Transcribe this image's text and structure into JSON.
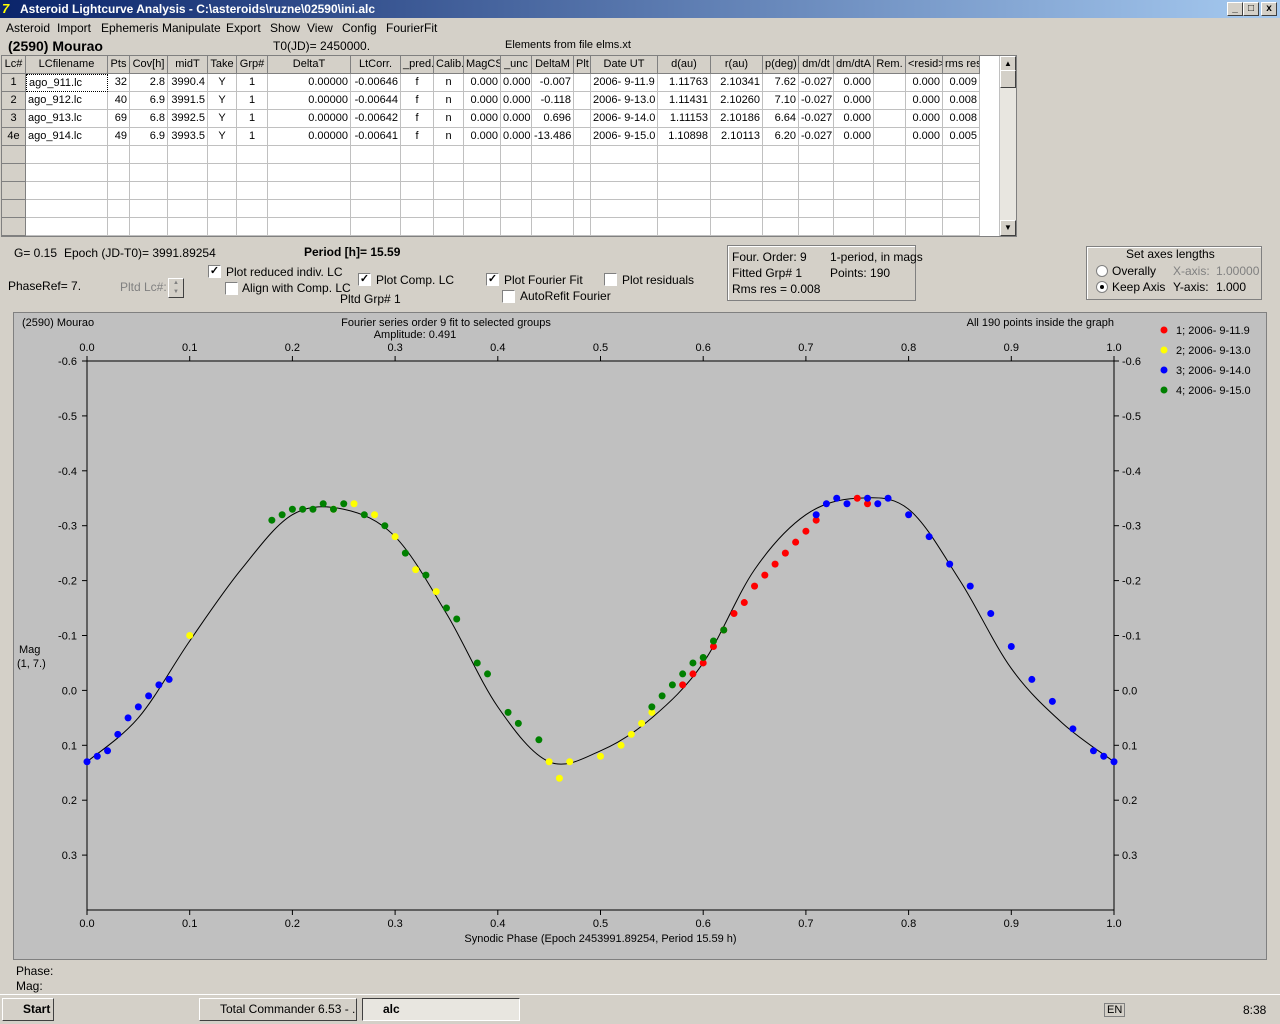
{
  "window": {
    "title": "Asteroid Lightcurve Analysis - C:\\asteroids\\ruzne\\02590\\ini.alc",
    "min": "_",
    "max": "□",
    "close": "x"
  },
  "menu": [
    "Asteroid",
    "Import",
    "Ephemeris",
    "Manipulate",
    "Export",
    "Show",
    "View",
    "Config",
    "FourierFit"
  ],
  "header": {
    "asteroid": "(2590) Mourao",
    "t0": "T0(JD)= 2450000.",
    "elements": "Elements from file elms.xt"
  },
  "grid": {
    "columns": [
      "Lc#",
      "LCfilename",
      "Pts",
      "Cov[h]",
      "midT",
      "Take",
      "Grp#",
      "DeltaT",
      "LtCorr.",
      "_pred.",
      "Calib.",
      "MagCS",
      "_unc",
      "DeltaM",
      "Plt",
      "Date UT",
      "d(au)",
      "r(au)",
      "p(deg)",
      "dm/dt",
      "dm/dtA",
      "Rem.",
      "<resid>",
      "rms res"
    ],
    "rows": [
      [
        "1",
        "ago_911.lc",
        "32",
        "2.8",
        "3990.4",
        "Y",
        "1",
        "0.00000",
        "-0.00646",
        "f",
        "n",
        "0.000",
        "0.000",
        "-0.007",
        "",
        "2006- 9-11.9",
        "1.11763",
        "2.10341",
        "7.62",
        "-0.027",
        "0.000",
        "",
        "0.000",
        "0.009"
      ],
      [
        "2",
        "ago_912.lc",
        "40",
        "6.9",
        "3991.5",
        "Y",
        "1",
        "0.00000",
        "-0.00644",
        "f",
        "n",
        "0.000",
        "0.000",
        "-0.118",
        "",
        "2006- 9-13.0",
        "1.11431",
        "2.10260",
        "7.10",
        "-0.027",
        "0.000",
        "",
        "0.000",
        "0.008"
      ],
      [
        "3",
        "ago_913.lc",
        "69",
        "6.8",
        "3992.5",
        "Y",
        "1",
        "0.00000",
        "-0.00642",
        "f",
        "n",
        "0.000",
        "0.000",
        "0.696",
        "",
        "2006- 9-14.0",
        "1.11153",
        "2.10186",
        "6.64",
        "-0.027",
        "0.000",
        "",
        "0.000",
        "0.008"
      ],
      [
        "4e",
        "ago_914.lc",
        "49",
        "6.9",
        "3993.5",
        "Y",
        "1",
        "0.00000",
        "-0.00641",
        "f",
        "n",
        "0.000",
        "0.000",
        "-13.486",
        "",
        "2006- 9-15.0",
        "1.10898",
        "2.10113",
        "6.20",
        "-0.027",
        "0.000",
        "",
        "0.000",
        "0.005"
      ]
    ]
  },
  "controls": {
    "g": "G= 0.15",
    "epoch": "Epoch (JD-T0)= 3991.89254",
    "period": "Period [h]= 15.59",
    "phaseref": "PhaseRef= 7.",
    "pltdlc": "Pltd Lc#:",
    "plot_reduced": "Plot reduced indiv. LC",
    "align": "Align with Comp. LC",
    "plot_comp": "Plot Comp. LC",
    "pltd_grp": "Pltd Grp#  1",
    "plot_fourier": "Plot Fourier Fit",
    "autorefit": "AutoRefit Fourier",
    "plot_resid": "Plot residuals",
    "four_order": "Four. Order:  9",
    "fitted_grp": "Fitted Grp# 1",
    "rms": "Rms res      = 0.008",
    "one_period": "1-period, in mags",
    "points": "Points: 190",
    "axes_title": "Set axes lengths",
    "overally": "Overally",
    "keep_axis": "Keep Axis",
    "xaxis_label": "X-axis:",
    "xaxis_val": "1.00000",
    "yaxis_label": "Y-axis:",
    "yaxis_val": "1.000",
    "phase_lbl": "Phase:",
    "mag_lbl": "Mag:"
  },
  "chart_data": {
    "type": "scatter",
    "title": "Fourier series order 9 fit to selected groups",
    "subtitle": "Amplitude: 0.491",
    "left_label": "(2590) Mourao",
    "right_label": "All 190 points inside the graph",
    "xlabel": "Synodic Phase (Epoch 2453991.89254, Period 15.59 h)",
    "ylabel": "Mag",
    "ylabel2": "(1, 7.)",
    "xlim": [
      0,
      1
    ],
    "ylim": [
      0.4,
      -0.6
    ],
    "xticks": [
      "0.0",
      "0.1",
      "0.2",
      "0.3",
      "0.4",
      "0.5",
      "0.6",
      "0.7",
      "0.8",
      "0.9",
      "1.0"
    ],
    "yticks": [
      "-0.6",
      "-0.5",
      "-0.4",
      "-0.3",
      "-0.2",
      "-0.1",
      "0.0",
      "0.1",
      "0.2",
      "0.3"
    ],
    "legend": [
      {
        "name": "1; 2006- 9-11.9",
        "color": "#ff0000"
      },
      {
        "name": "2; 2006- 9-13.0",
        "color": "#ffff00"
      },
      {
        "name": "3; 2006- 9-14.0",
        "color": "#0000ff"
      },
      {
        "name": "4; 2006- 9-15.0",
        "color": "#008000"
      }
    ],
    "fit": {
      "x": [
        0,
        0.05,
        0.1,
        0.15,
        0.2,
        0.25,
        0.3,
        0.35,
        0.4,
        0.45,
        0.5,
        0.55,
        0.6,
        0.65,
        0.7,
        0.75,
        0.8,
        0.85,
        0.9,
        0.95,
        1.0
      ],
      "y": [
        0.13,
        0.05,
        -0.09,
        -0.22,
        -0.32,
        -0.33,
        -0.28,
        -0.14,
        0.03,
        0.13,
        0.11,
        0.05,
        -0.05,
        -0.22,
        -0.32,
        -0.35,
        -0.33,
        -0.2,
        -0.04,
        0.06,
        0.13
      ]
    },
    "series": [
      {
        "name": "1",
        "color": "#ff0000",
        "x": [
          0.58,
          0.59,
          0.6,
          0.61,
          0.62,
          0.63,
          0.64,
          0.65,
          0.66,
          0.67,
          0.68,
          0.69,
          0.7,
          0.71,
          0.75,
          0.76
        ],
        "y": [
          -0.01,
          -0.03,
          -0.05,
          -0.08,
          -0.11,
          -0.14,
          -0.16,
          -0.19,
          -0.21,
          -0.23,
          -0.25,
          -0.27,
          -0.29,
          -0.31,
          -0.35,
          -0.34
        ]
      },
      {
        "name": "2",
        "color": "#ffff00",
        "x": [
          0.1,
          0.24,
          0.26,
          0.28,
          0.3,
          0.32,
          0.34,
          0.45,
          0.46,
          0.47,
          0.5,
          0.52,
          0.53,
          0.54,
          0.55
        ],
        "y": [
          -0.1,
          -0.33,
          -0.34,
          -0.32,
          -0.28,
          -0.22,
          -0.18,
          0.13,
          0.16,
          0.13,
          0.12,
          0.1,
          0.08,
          0.06,
          0.04
        ]
      },
      {
        "name": "3",
        "color": "#0000ff",
        "x": [
          0.0,
          0.01,
          0.02,
          0.03,
          0.04,
          0.05,
          0.06,
          0.07,
          0.08,
          0.71,
          0.72,
          0.73,
          0.74,
          0.76,
          0.77,
          0.78,
          0.8,
          0.82,
          0.84,
          0.86,
          0.88,
          0.9,
          0.92,
          0.94,
          0.96,
          0.98,
          0.99,
          1.0
        ],
        "y": [
          0.13,
          0.12,
          0.11,
          0.08,
          0.05,
          0.03,
          0.01,
          -0.01,
          -0.02,
          -0.32,
          -0.34,
          -0.35,
          -0.34,
          -0.35,
          -0.34,
          -0.35,
          -0.32,
          -0.28,
          -0.23,
          -0.19,
          -0.14,
          -0.08,
          -0.02,
          0.02,
          0.07,
          0.11,
          0.12,
          0.13
        ]
      },
      {
        "name": "4",
        "color": "#008000",
        "x": [
          0.18,
          0.19,
          0.2,
          0.21,
          0.22,
          0.23,
          0.24,
          0.25,
          0.27,
          0.29,
          0.31,
          0.33,
          0.35,
          0.36,
          0.38,
          0.39,
          0.41,
          0.42,
          0.44,
          0.55,
          0.56,
          0.57,
          0.58,
          0.59,
          0.6,
          0.61,
          0.62
        ],
        "y": [
          -0.31,
          -0.32,
          -0.33,
          -0.33,
          -0.33,
          -0.34,
          -0.33,
          -0.34,
          -0.32,
          -0.3,
          -0.25,
          -0.21,
          -0.15,
          -0.13,
          -0.05,
          -0.03,
          0.04,
          0.06,
          0.09,
          0.03,
          0.01,
          -0.01,
          -0.03,
          -0.05,
          -0.06,
          -0.09,
          -0.11
        ]
      }
    ]
  },
  "taskbar": {
    "start": "Start",
    "tc": "Total Commander 6.53 - ...",
    "alc": "alc",
    "lang": "EN",
    "time": "8:38"
  }
}
